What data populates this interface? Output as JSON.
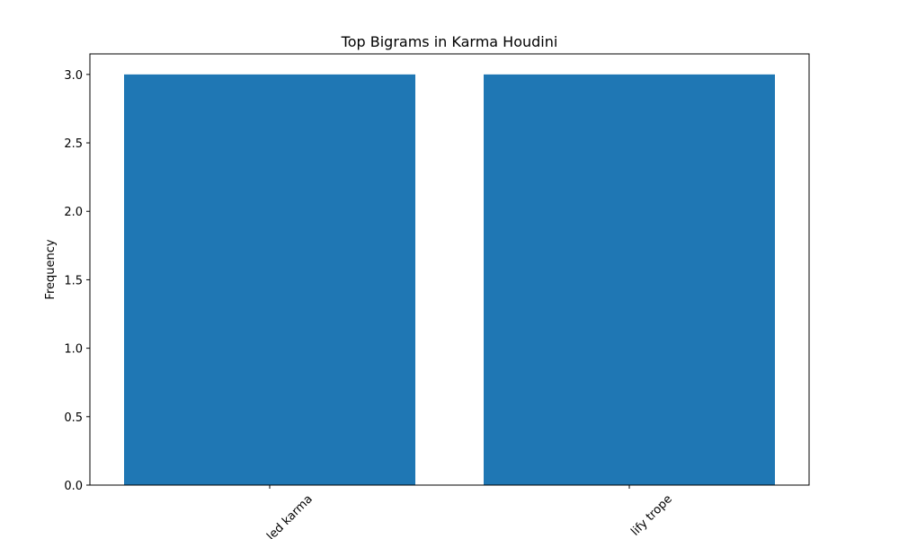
{
  "chart_data": {
    "type": "bar",
    "title": "Top Bigrams in Karma Houdini",
    "y_label": "Frequency",
    "categories": [
      "led karma",
      "lify trope"
    ],
    "values": [
      3,
      3
    ],
    "color": "#1f77b4",
    "ylim": [
      0,
      3.15
    ],
    "yticks": [
      {
        "value": 0,
        "label": "0.0"
      },
      {
        "value": 0.5,
        "label": "0.5"
      },
      {
        "value": 1,
        "label": "1.0"
      },
      {
        "value": 1.5,
        "label": "1.5"
      },
      {
        "value": 2,
        "label": "2.0"
      },
      {
        "value": 2.5,
        "label": "2.5"
      },
      {
        "value": 3,
        "label": "3.0"
      }
    ]
  }
}
